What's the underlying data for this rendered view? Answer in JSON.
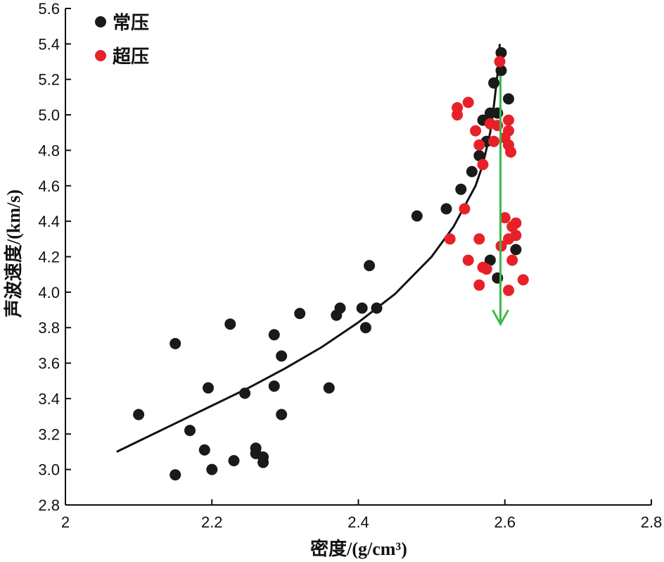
{
  "chart_data": {
    "type": "scatter",
    "xlabel": "密度/(g/cm³)",
    "ylabel": "声波速度/(km/s)",
    "xlim": [
      2.0,
      2.8
    ],
    "ylim": [
      2.8,
      5.6
    ],
    "xticks": [
      2,
      2.2,
      2.4,
      2.6,
      2.8
    ],
    "xtick_labels": [
      "2",
      "2.2",
      "2.4",
      "2.6",
      "2.8"
    ],
    "yticks": [
      2.8,
      3.0,
      3.2,
      3.4,
      3.6,
      3.8,
      4.0,
      4.2,
      4.4,
      4.6,
      4.8,
      5.0,
      5.2,
      5.4,
      5.6
    ],
    "ytick_labels": [
      "2.8",
      "3.0",
      "3.2",
      "3.4",
      "3.6",
      "3.8",
      "4.0",
      "4.2",
      "4.4",
      "4.6",
      "4.8",
      "5.0",
      "5.2",
      "5.4",
      "5.6"
    ],
    "grid": false,
    "legend": "top-left",
    "series": [
      {
        "name": "常压",
        "color": "#1a1a1a",
        "points": [
          [
            2.1,
            3.31
          ],
          [
            2.15,
            3.71
          ],
          [
            2.15,
            2.97
          ],
          [
            2.17,
            3.22
          ],
          [
            2.19,
            3.11
          ],
          [
            2.195,
            3.46
          ],
          [
            2.2,
            3.0
          ],
          [
            2.225,
            3.82
          ],
          [
            2.23,
            3.05
          ],
          [
            2.245,
            3.43
          ],
          [
            2.26,
            3.12
          ],
          [
            2.26,
            3.09
          ],
          [
            2.27,
            3.07
          ],
          [
            2.27,
            3.04
          ],
          [
            2.285,
            3.76
          ],
          [
            2.285,
            3.47
          ],
          [
            2.295,
            3.64
          ],
          [
            2.295,
            3.31
          ],
          [
            2.32,
            3.88
          ],
          [
            2.36,
            3.46
          ],
          [
            2.37,
            3.87
          ],
          [
            2.375,
            3.91
          ],
          [
            2.405,
            3.91
          ],
          [
            2.41,
            3.8
          ],
          [
            2.415,
            4.15
          ],
          [
            2.425,
            3.91
          ],
          [
            2.48,
            4.43
          ],
          [
            2.52,
            4.47
          ],
          [
            2.54,
            4.58
          ],
          [
            2.555,
            4.68
          ],
          [
            2.565,
            4.77
          ],
          [
            2.57,
            4.97
          ],
          [
            2.575,
            4.85
          ],
          [
            2.58,
            5.01
          ],
          [
            2.58,
            4.18
          ],
          [
            2.585,
            5.18
          ],
          [
            2.59,
            5.01
          ],
          [
            2.59,
            4.08
          ],
          [
            2.595,
            5.35
          ],
          [
            2.595,
            5.25
          ],
          [
            2.605,
            5.09
          ],
          [
            2.615,
            4.24
          ]
        ]
      },
      {
        "name": "超压",
        "color": "#e8202a",
        "points": [
          [
            2.525,
            4.3
          ],
          [
            2.535,
            5.04
          ],
          [
            2.535,
            5.0
          ],
          [
            2.545,
            4.47
          ],
          [
            2.55,
            5.07
          ],
          [
            2.55,
            4.18
          ],
          [
            2.56,
            4.91
          ],
          [
            2.565,
            4.83
          ],
          [
            2.565,
            4.3
          ],
          [
            2.565,
            4.04
          ],
          [
            2.57,
            4.14
          ],
          [
            2.57,
            4.72
          ],
          [
            2.575,
            4.13
          ],
          [
            2.58,
            4.95
          ],
          [
            2.585,
            4.85
          ],
          [
            2.59,
            4.94
          ],
          [
            2.593,
            5.3
          ],
          [
            2.595,
            4.26
          ],
          [
            2.6,
            4.87
          ],
          [
            2.6,
            4.42
          ],
          [
            2.605,
            4.97
          ],
          [
            2.605,
            4.91
          ],
          [
            2.605,
            4.83
          ],
          [
            2.605,
            4.3
          ],
          [
            2.605,
            4.01
          ],
          [
            2.608,
            4.79
          ],
          [
            2.61,
            4.18
          ],
          [
            2.61,
            4.37
          ],
          [
            2.615,
            4.39
          ],
          [
            2.615,
            4.32
          ],
          [
            2.625,
            4.07
          ]
        ]
      }
    ],
    "trend_line": {
      "color": "#111111",
      "points": [
        [
          2.07,
          3.1
        ],
        [
          2.1,
          3.16
        ],
        [
          2.15,
          3.26
        ],
        [
          2.2,
          3.36
        ],
        [
          2.25,
          3.46
        ],
        [
          2.3,
          3.57
        ],
        [
          2.35,
          3.69
        ],
        [
          2.4,
          3.83
        ],
        [
          2.45,
          3.99
        ],
        [
          2.5,
          4.2
        ],
        [
          2.53,
          4.37
        ],
        [
          2.56,
          4.6
        ],
        [
          2.57,
          4.72
        ],
        [
          2.58,
          4.9
        ],
        [
          2.585,
          5.05
        ],
        [
          2.59,
          5.23
        ],
        [
          2.593,
          5.4
        ]
      ]
    },
    "arrow": {
      "color": "#3cb84a",
      "from": [
        2.594,
        5.22
      ],
      "to": [
        2.594,
        3.82
      ]
    }
  }
}
